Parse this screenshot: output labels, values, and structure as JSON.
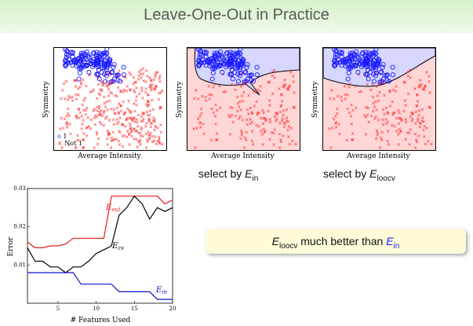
{
  "slide": {
    "title": "Leave-One-Out in Practice",
    "scatter_ylabel": "Symmetry",
    "scatter_xlabel": "Average Intensity",
    "legend": [
      "1",
      "Not 1"
    ],
    "caption_ein": {
      "prefix": "select by ",
      "sym": "E",
      "sub": "in"
    },
    "caption_eloocv": {
      "prefix": "select by ",
      "sym": "E",
      "sub": "loocv"
    },
    "callout": {
      "sym1": "E",
      "sub1": "loocv",
      "mid": " much better than ",
      "sym2": "E",
      "sub2": "in"
    }
  },
  "colors": {
    "one": "#1a1aff",
    "not_one": "#ff1a1a",
    "region_blue": "#d6d6ff",
    "region_red": "#ffd6d6",
    "title_band": "#dff4d3"
  },
  "chart_data": {
    "type": "line",
    "xlabel": "# Features Used",
    "ylabel": "Error",
    "xlim": [
      1,
      20
    ],
    "ylim": [
      0,
      0.03
    ],
    "xticks": [
      5,
      10,
      15,
      20
    ],
    "yticks": [
      0.01,
      0.02,
      0.03
    ],
    "ytick_labels": [
      "0.01",
      "0.02",
      "0.03"
    ],
    "series": [
      {
        "name": "E_out",
        "label_main": "E",
        "label_sub": "out",
        "color": "#e41a1a",
        "x": [
          1,
          2,
          3,
          4,
          5,
          6,
          7,
          8,
          9,
          10,
          11,
          12,
          13,
          14,
          15,
          16,
          17,
          18,
          19,
          20
        ],
        "y": [
          0.016,
          0.0145,
          0.0145,
          0.015,
          0.015,
          0.0155,
          0.017,
          0.017,
          0.017,
          0.017,
          0.017,
          0.028,
          0.028,
          0.028,
          0.028,
          0.028,
          0.028,
          0.028,
          0.026,
          0.027
        ]
      },
      {
        "name": "E_cv",
        "label_main": "E",
        "label_sub": "cv",
        "color": "#000000",
        "x": [
          1,
          2,
          3,
          4,
          5,
          6,
          7,
          8,
          9,
          10,
          11,
          12,
          13,
          14,
          15,
          16,
          17,
          18,
          19,
          20
        ],
        "y": [
          0.0145,
          0.011,
          0.011,
          0.0095,
          0.0095,
          0.008,
          0.0095,
          0.0095,
          0.011,
          0.013,
          0.014,
          0.015,
          0.023,
          0.025,
          0.028,
          0.026,
          0.022,
          0.025,
          0.024,
          0.025
        ]
      },
      {
        "name": "E_in",
        "label_main": "E",
        "label_sub": "in",
        "color": "#1010cc",
        "x": [
          1,
          2,
          3,
          4,
          5,
          6,
          7,
          8,
          9,
          10,
          11,
          12,
          13,
          14,
          15,
          16,
          17,
          18,
          19,
          20
        ],
        "y": [
          0.008,
          0.008,
          0.008,
          0.008,
          0.008,
          0.008,
          0.008,
          0.005,
          0.005,
          0.005,
          0.005,
          0.005,
          0.003,
          0.003,
          0.003,
          0.003,
          0.003,
          0.001,
          0.001,
          0.001
        ]
      }
    ]
  }
}
